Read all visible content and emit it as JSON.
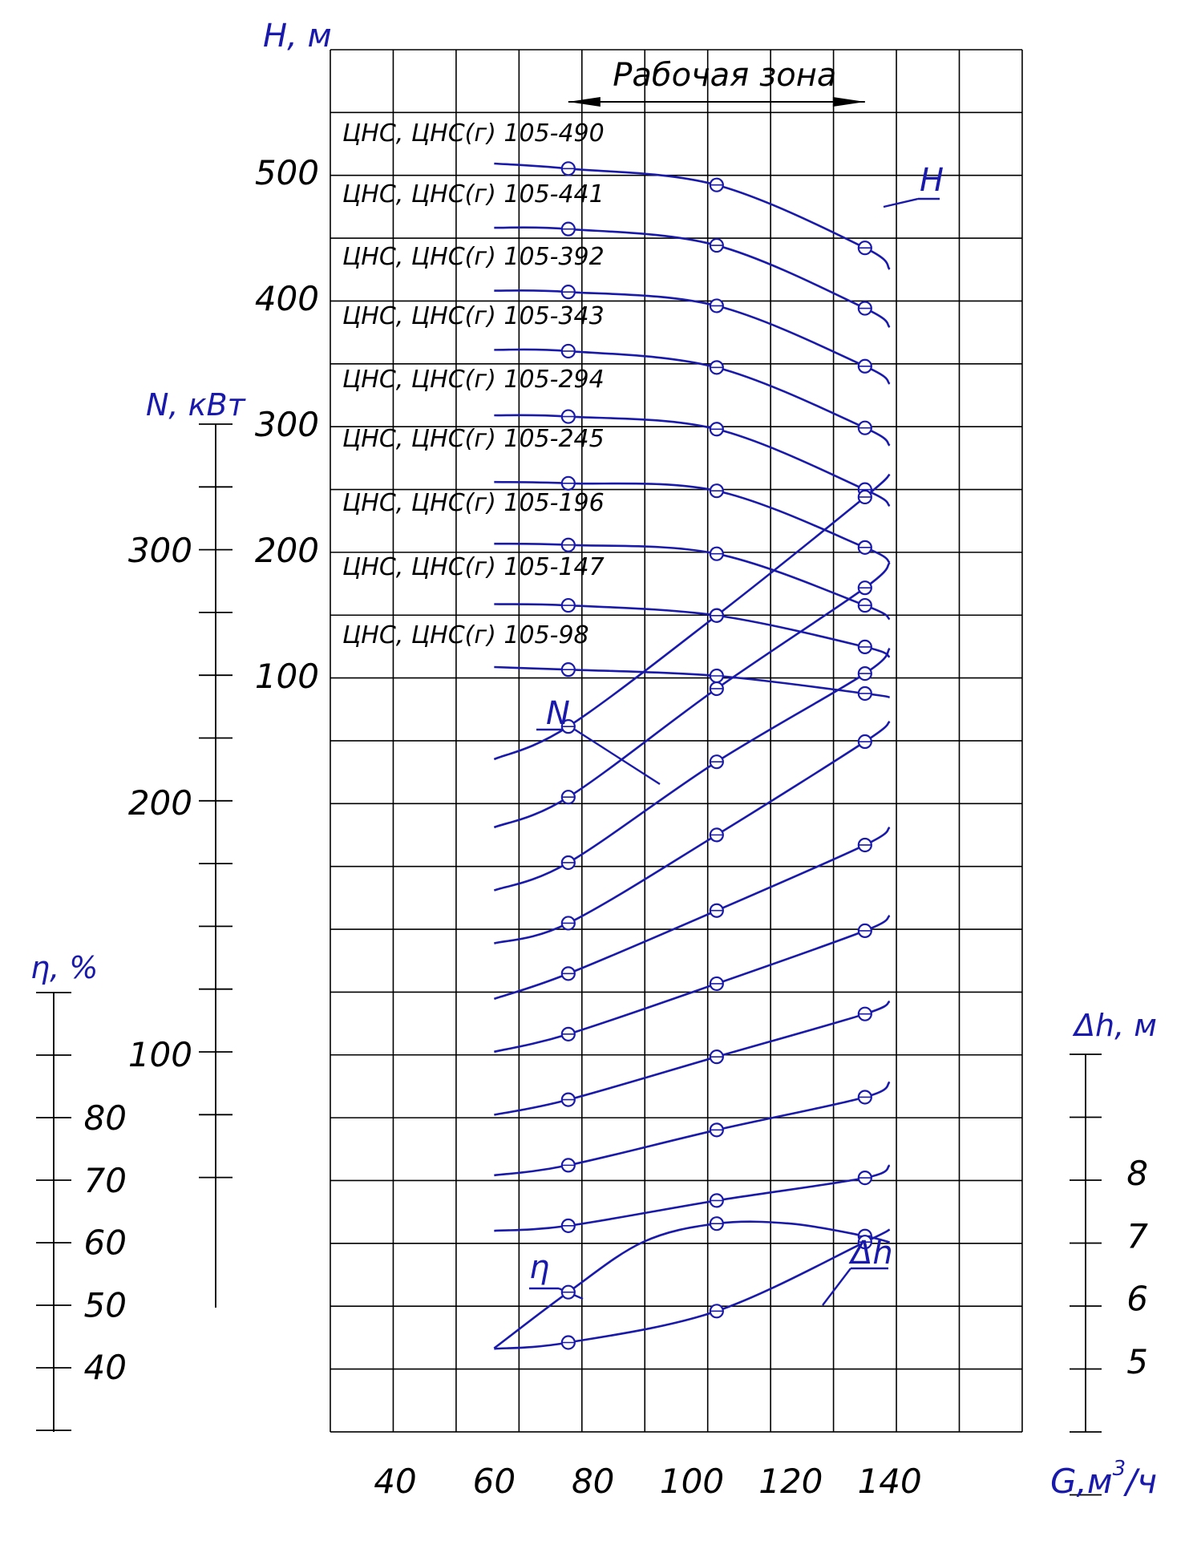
{
  "chart_data": {
    "type": "line",
    "xlabel": "G,м",
    "xlabel_sup": "3",
    "xlabel_tail": "/ч",
    "x_ticks": [
      40,
      60,
      80,
      100,
      120,
      140
    ],
    "xlim": [
      30,
      140
    ],
    "axes": {
      "H": {
        "label": "Н, м",
        "ticks": [
          "500",
          "400",
          "300",
          "200",
          "100"
        ],
        "range": [
          0,
          600
        ]
      },
      "N": {
        "label": "N, кВт",
        "ticks": [
          "300",
          "200",
          "100"
        ],
        "range": [
          0,
          400
        ]
      },
      "eta": {
        "label": "η, %",
        "ticks": [
          "80",
          "70",
          "60",
          "50",
          "40"
        ],
        "range": [
          30,
          90
        ]
      },
      "dh": {
        "label": "Δh, м",
        "ticks": [
          "8",
          "7",
          "6",
          "5"
        ],
        "range": [
          4,
          9
        ]
      }
    },
    "working_zone_label": "Рабочая зона",
    "working_zone": [
      75,
      135
    ],
    "curve_labels": {
      "H": "H",
      "N": "N",
      "eta": "η",
      "dh": "Δh"
    },
    "models": [
      "ЦНС, ЦНС(г)  105-490",
      "ЦНС, ЦНС(г)  105-441",
      "ЦНС, ЦНС(г)  105-392",
      "ЦНС, ЦНС(г)  105-343",
      "ЦНС, ЦНС(г)  105-294",
      "ЦНС, ЦНС(г)  105-245",
      "ЦНС, ЦНС(г)  105-196",
      "ЦНС, ЦНС(г)  105-147",
      "ЦНС, ЦНС(г) 105-98"
    ],
    "h_series": [
      {
        "name": "105-490",
        "x": [
          60,
          75,
          105,
          135,
          140
        ],
        "y": [
          507,
          503,
          490,
          440,
          423
        ]
      },
      {
        "name": "105-441",
        "x": [
          60,
          75,
          105,
          135,
          140
        ],
        "y": [
          456,
          455,
          442,
          392,
          377
        ]
      },
      {
        "name": "105-392",
        "x": [
          60,
          75,
          105,
          135,
          140
        ],
        "y": [
          406,
          405,
          394,
          346,
          332
        ]
      },
      {
        "name": "105-343",
        "x": [
          60,
          75,
          105,
          135,
          140
        ],
        "y": [
          359,
          358,
          345,
          297,
          283
        ]
      },
      {
        "name": "105-294",
        "x": [
          60,
          75,
          105,
          135,
          140
        ],
        "y": [
          307,
          306,
          296,
          248,
          235
        ]
      },
      {
        "name": "105-245",
        "x": [
          60,
          75,
          105,
          135,
          140
        ],
        "y": [
          254,
          253,
          247,
          202,
          190
        ]
      },
      {
        "name": "105-196",
        "x": [
          60,
          75,
          105,
          135,
          140
        ],
        "y": [
          205,
          204,
          197,
          156,
          145
        ]
      },
      {
        "name": "105-147",
        "x": [
          60,
          75,
          105,
          135,
          140
        ],
        "y": [
          157,
          156,
          148,
          123,
          115
        ]
      },
      {
        "name": "105-98",
        "x": [
          60,
          75,
          105,
          135,
          140
        ],
        "y": [
          107,
          105,
          100,
          86,
          83
        ]
      }
    ],
    "n_series": [
      {
        "name": "105-490",
        "x": [
          60,
          75,
          105,
          135,
          140
        ],
        "y": [
          217,
          230,
          274,
          321,
          330
        ]
      },
      {
        "name": "105-441",
        "x": [
          60,
          75,
          105,
          135,
          140
        ],
        "y": [
          190,
          202,
          245,
          285,
          295
        ]
      },
      {
        "name": "105-392",
        "x": [
          60,
          75,
          105,
          135,
          140
        ],
        "y": [
          165,
          176,
          216,
          251,
          261
        ]
      },
      {
        "name": "105-343",
        "x": [
          60,
          75,
          105,
          135,
          140
        ],
        "y": [
          144,
          152,
          187,
          224,
          232
        ]
      },
      {
        "name": "105-294",
        "x": [
          60,
          75,
          105,
          135,
          140
        ],
        "y": [
          122,
          132,
          157,
          183,
          190
        ]
      },
      {
        "name": "105-245",
        "x": [
          60,
          75,
          105,
          135,
          140
        ],
        "y": [
          101,
          108,
          128,
          149,
          155
        ]
      },
      {
        "name": "105-196",
        "x": [
          60,
          75,
          105,
          135,
          140
        ],
        "y": [
          76,
          82,
          99,
          116,
          121
        ]
      },
      {
        "name": "105-147",
        "x": [
          60,
          75,
          105,
          135,
          140
        ],
        "y": [
          52,
          56,
          70,
          83,
          89
        ]
      },
      {
        "name": "105-98",
        "x": [
          60,
          75,
          105,
          135,
          140
        ],
        "y": [
          30,
          32,
          42,
          51,
          56
        ]
      }
    ],
    "eta_series": {
      "x": [
        60,
        75,
        90,
        105,
        120,
        135,
        140
      ],
      "y": [
        43,
        52,
        60,
        63,
        63,
        61,
        60
      ]
    },
    "dh_series": {
      "x": [
        60,
        75,
        105,
        135,
        140
      ],
      "y": [
        5.2,
        5.3,
        5.8,
        6.9,
        7.1
      ]
    },
    "markers_x": [
      75,
      105,
      135
    ]
  }
}
